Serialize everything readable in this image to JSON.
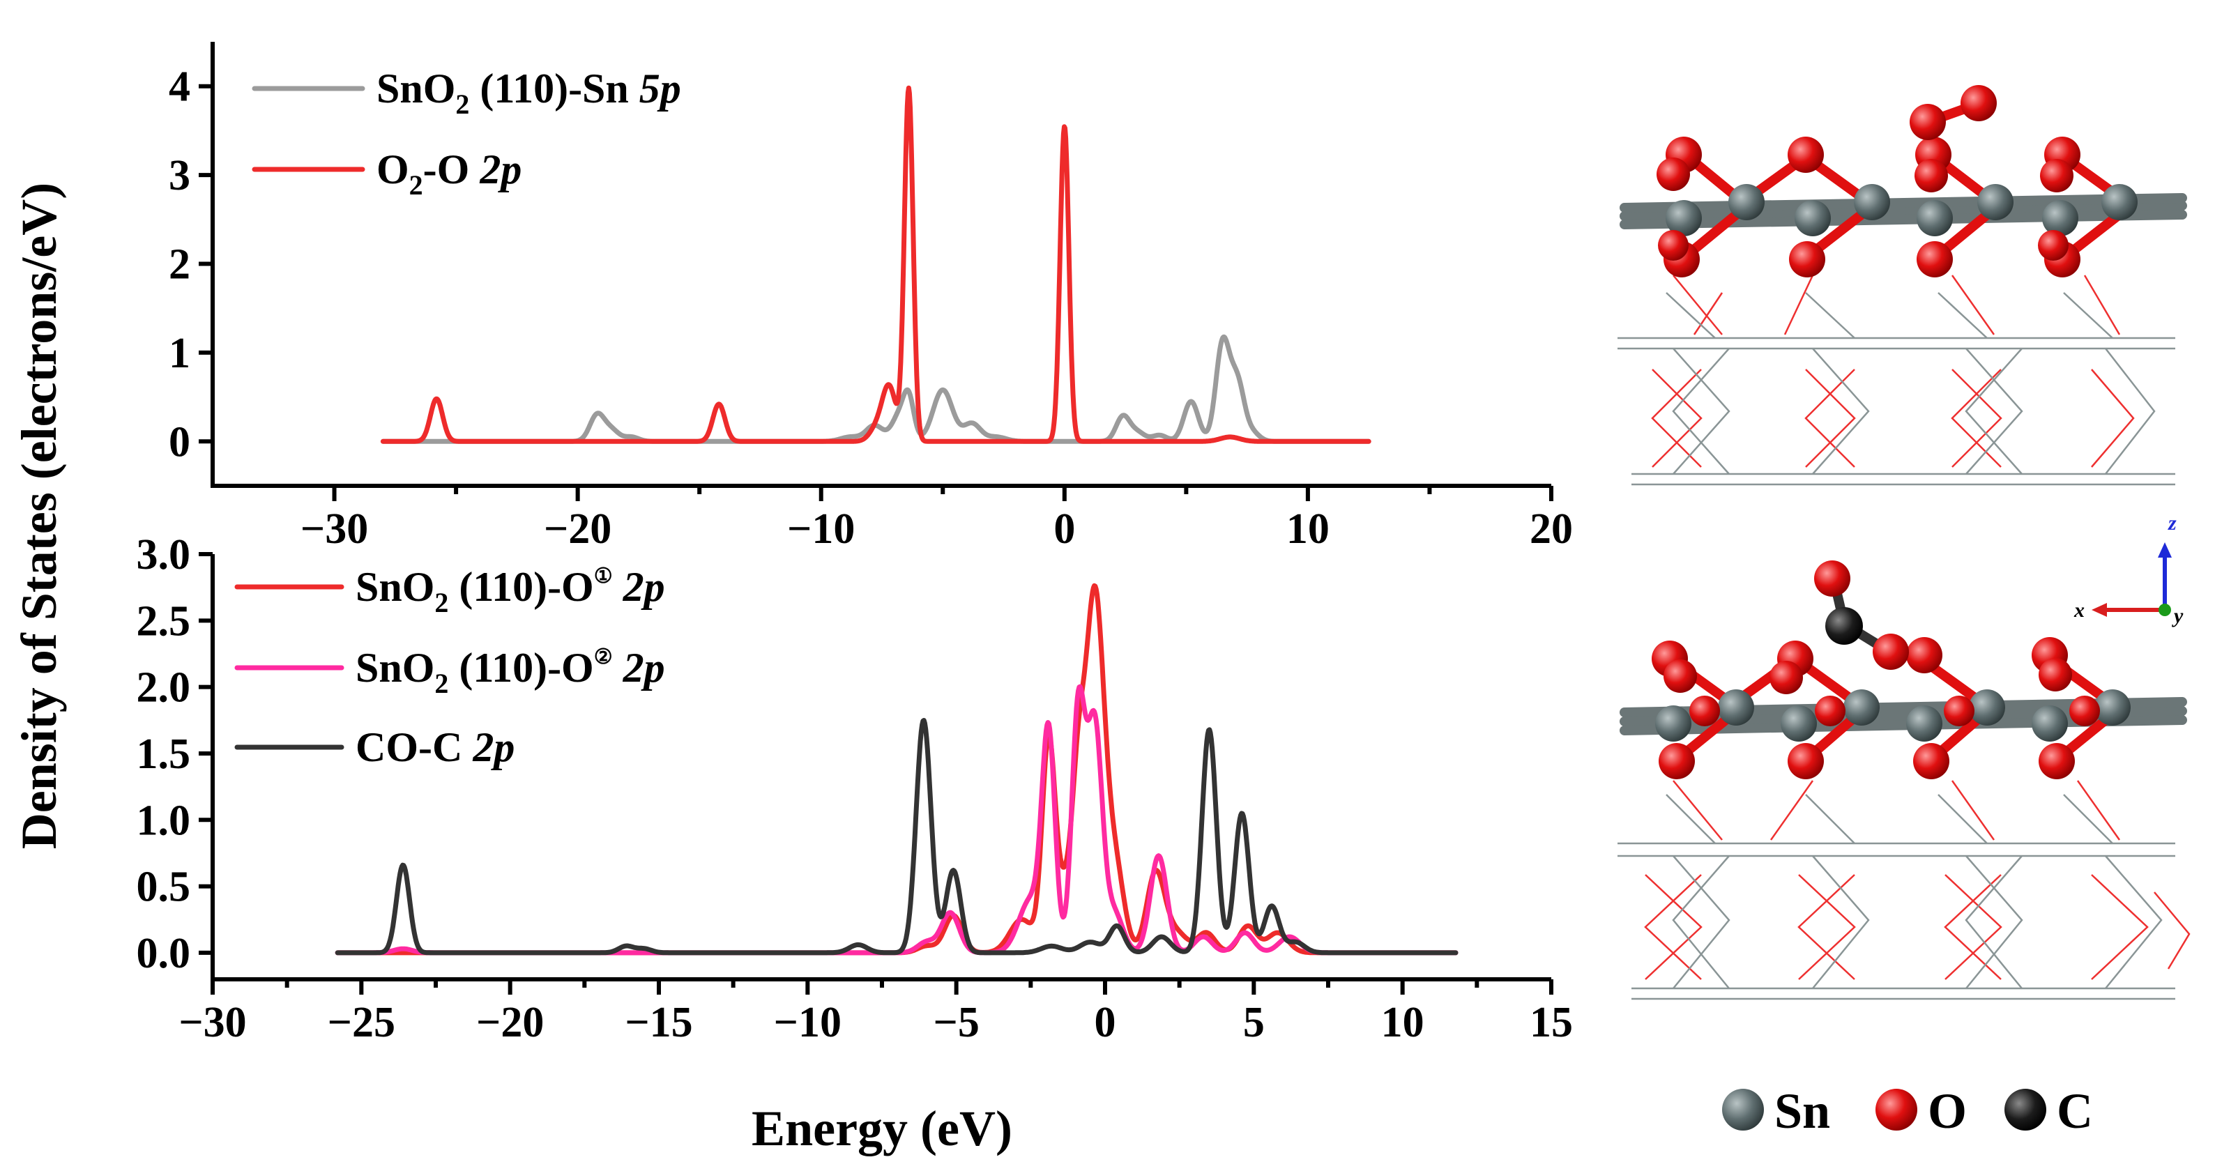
{
  "chart_data": [
    {
      "type": "line",
      "panel": "top",
      "xlim": [
        -35,
        20
      ],
      "ylim": [
        -0.5,
        4.5
      ],
      "xticks": [
        "−30",
        "−20",
        "−10",
        "0",
        "10",
        "20"
      ],
      "xtick_values": [
        -30,
        -20,
        -10,
        0,
        10,
        20
      ],
      "yticks": [
        "0",
        "1",
        "2",
        "3",
        "4"
      ],
      "ytick_values": [
        0,
        1,
        2,
        3,
        4
      ],
      "legend": [
        {
          "label": "SnO2 (110)-Sn 5p",
          "color": "#9b9b9b"
        },
        {
          "label": "O2-O 2p",
          "color": "#ee2b2b"
        }
      ],
      "series": [
        {
          "name": "SnO2 (110)-Sn 5p",
          "color": "#9b9b9b",
          "range": [
            -28,
            12.5
          ],
          "baseline": 0,
          "peaks": [
            {
              "x": -19.2,
              "h": 0.3,
              "w": 0.3
            },
            {
              "x": -18.6,
              "h": 0.12,
              "w": 0.3
            },
            {
              "x": -17.8,
              "h": 0.05,
              "w": 0.3
            },
            {
              "x": -8.8,
              "h": 0.05,
              "w": 0.4
            },
            {
              "x": -7.8,
              "h": 0.18,
              "w": 0.35
            },
            {
              "x": -6.8,
              "h": 0.28,
              "w": 0.3
            },
            {
              "x": -6.4,
              "h": 0.45,
              "w": 0.22
            },
            {
              "x": -5.0,
              "h": 0.58,
              "w": 0.4
            },
            {
              "x": -3.8,
              "h": 0.2,
              "w": 0.35
            },
            {
              "x": -2.8,
              "h": 0.05,
              "w": 0.4
            },
            {
              "x": 2.4,
              "h": 0.28,
              "w": 0.28
            },
            {
              "x": 3.0,
              "h": 0.1,
              "w": 0.3
            },
            {
              "x": 3.9,
              "h": 0.07,
              "w": 0.3
            },
            {
              "x": 5.2,
              "h": 0.45,
              "w": 0.3
            },
            {
              "x": 6.5,
              "h": 1.1,
              "w": 0.28
            },
            {
              "x": 7.1,
              "h": 0.65,
              "w": 0.28
            },
            {
              "x": 7.7,
              "h": 0.1,
              "w": 0.3
            }
          ]
        },
        {
          "name": "O2-O 2p",
          "color": "#ee2b2b",
          "range": [
            -28,
            12.5
          ],
          "baseline": 0,
          "peaks": [
            {
              "x": -25.8,
              "h": 0.48,
              "w": 0.25
            },
            {
              "x": -14.2,
              "h": 0.42,
              "w": 0.25
            },
            {
              "x": -7.7,
              "h": 0.15,
              "w": 0.3
            },
            {
              "x": -7.2,
              "h": 0.6,
              "w": 0.28
            },
            {
              "x": -6.4,
              "h": 3.97,
              "w": 0.18
            },
            {
              "x": 0.0,
              "h": 3.55,
              "w": 0.18
            },
            {
              "x": 6.8,
              "h": 0.05,
              "w": 0.4
            }
          ]
        }
      ]
    },
    {
      "type": "line",
      "panel": "bottom",
      "xlabel": "Energy (eV)",
      "ylabel": "Density of States (electrons/eV)",
      "xlim": [
        -30,
        15
      ],
      "ylim": [
        -0.2,
        3.0
      ],
      "xticks": [
        "−30",
        "−25",
        "−20",
        "−15",
        "−10",
        "−5",
        "0",
        "5",
        "10",
        "15"
      ],
      "xtick_values": [
        -30,
        -25,
        -20,
        -15,
        -10,
        -5,
        0,
        5,
        10,
        15
      ],
      "yticks": [
        "0.0",
        "0.5",
        "1.0",
        "1.5",
        "2.0",
        "2.5",
        "3.0"
      ],
      "ytick_values": [
        0,
        0.5,
        1.0,
        1.5,
        2.0,
        2.5,
        3.0
      ],
      "legend": [
        {
          "label": "SnO2 (110)-O① 2p",
          "color": "#ee2b2b"
        },
        {
          "label": "SnO2 (110)-O② 2p",
          "color": "#ff2aa0"
        },
        {
          "label": "CO-C 2p",
          "color": "#333333"
        }
      ],
      "series": [
        {
          "name": "SnO2 (110)-O① 2p",
          "color": "#ee2b2b",
          "range": [
            -25.8,
            11.8
          ],
          "baseline": 0,
          "peaks": [
            {
              "x": -6.0,
              "h": 0.05,
              "w": 0.3
            },
            {
              "x": -5.1,
              "h": 0.28,
              "w": 0.3
            },
            {
              "x": -2.8,
              "h": 0.25,
              "w": 0.4
            },
            {
              "x": -1.9,
              "h": 1.55,
              "w": 0.22
            },
            {
              "x": -1.3,
              "h": 0.5,
              "w": 0.3
            },
            {
              "x": -0.9,
              "h": 0.9,
              "w": 0.2
            },
            {
              "x": -0.35,
              "h": 2.7,
              "w": 0.32
            },
            {
              "x": 0.35,
              "h": 0.6,
              "w": 0.3
            },
            {
              "x": 1.7,
              "h": 0.6,
              "w": 0.3
            },
            {
              "x": 2.4,
              "h": 0.15,
              "w": 0.35
            },
            {
              "x": 3.4,
              "h": 0.15,
              "w": 0.3
            },
            {
              "x": 4.8,
              "h": 0.2,
              "w": 0.3
            },
            {
              "x": 5.8,
              "h": 0.15,
              "w": 0.35
            }
          ]
        },
        {
          "name": "SnO2 (110)-O② 2p",
          "color": "#ff2aa0",
          "range": [
            -25.8,
            11.8
          ],
          "baseline": 0,
          "peaks": [
            {
              "x": -23.6,
              "h": 0.03,
              "w": 0.3
            },
            {
              "x": -6.0,
              "h": 0.08,
              "w": 0.3
            },
            {
              "x": -5.2,
              "h": 0.3,
              "w": 0.3
            },
            {
              "x": -2.5,
              "h": 0.4,
              "w": 0.4
            },
            {
              "x": -1.9,
              "h": 1.6,
              "w": 0.22
            },
            {
              "x": -0.9,
              "h": 1.82,
              "w": 0.22
            },
            {
              "x": -0.35,
              "h": 1.7,
              "w": 0.25
            },
            {
              "x": 0.3,
              "h": 0.3,
              "w": 0.3
            },
            {
              "x": 1.8,
              "h": 0.73,
              "w": 0.28
            },
            {
              "x": 3.3,
              "h": 0.12,
              "w": 0.3
            },
            {
              "x": 4.7,
              "h": 0.15,
              "w": 0.3
            },
            {
              "x": 6.2,
              "h": 0.12,
              "w": 0.35
            }
          ]
        },
        {
          "name": "CO-C 2p",
          "color": "#333333",
          "range": [
            -25.8,
            11.8
          ],
          "baseline": 0,
          "peaks": [
            {
              "x": -23.6,
              "h": 0.66,
              "w": 0.22
            },
            {
              "x": -16.1,
              "h": 0.05,
              "w": 0.25
            },
            {
              "x": -15.5,
              "h": 0.03,
              "w": 0.25
            },
            {
              "x": -8.3,
              "h": 0.06,
              "w": 0.3
            },
            {
              "x": -6.1,
              "h": 1.75,
              "w": 0.25
            },
            {
              "x": -5.1,
              "h": 0.62,
              "w": 0.25
            },
            {
              "x": -1.8,
              "h": 0.05,
              "w": 0.35
            },
            {
              "x": -0.5,
              "h": 0.08,
              "w": 0.35
            },
            {
              "x": 0.4,
              "h": 0.2,
              "w": 0.25
            },
            {
              "x": 1.9,
              "h": 0.12,
              "w": 0.3
            },
            {
              "x": 3.5,
              "h": 1.68,
              "w": 0.24
            },
            {
              "x": 4.6,
              "h": 1.05,
              "w": 0.24
            },
            {
              "x": 5.6,
              "h": 0.35,
              "w": 0.25
            },
            {
              "x": 6.4,
              "h": 0.08,
              "w": 0.3
            }
          ]
        }
      ]
    }
  ],
  "legend_text": {
    "top": [
      {
        "main": "SnO",
        "sub": "2",
        "rest": " (110)-Sn ",
        "it": "5p"
      },
      {
        "main": "O",
        "sub": "2",
        "rest": "-O ",
        "it": "2p"
      }
    ],
    "bottom": [
      {
        "main": "SnO",
        "sub": "2",
        "rest": " (110)-O",
        "sup": "①",
        "rest2": " ",
        "it": "2p"
      },
      {
        "main": "SnO",
        "sub": "2",
        "rest": " (110)-O",
        "sup": "②",
        "rest2": " ",
        "it": "2p"
      },
      {
        "main": "CO-C ",
        "it": "2p"
      }
    ]
  },
  "axis_labels": {
    "x": "Energy (eV)",
    "y": "Density of States (electrons/eV)"
  },
  "structure": {
    "compass": {
      "x": "x",
      "y": "y",
      "z": "z"
    },
    "atom_legend": [
      {
        "symbol": "Sn",
        "color": "#5f6e70"
      },
      {
        "symbol": "O",
        "color": "#e01010"
      },
      {
        "symbol": "C",
        "color": "#1c1c1c"
      }
    ]
  }
}
